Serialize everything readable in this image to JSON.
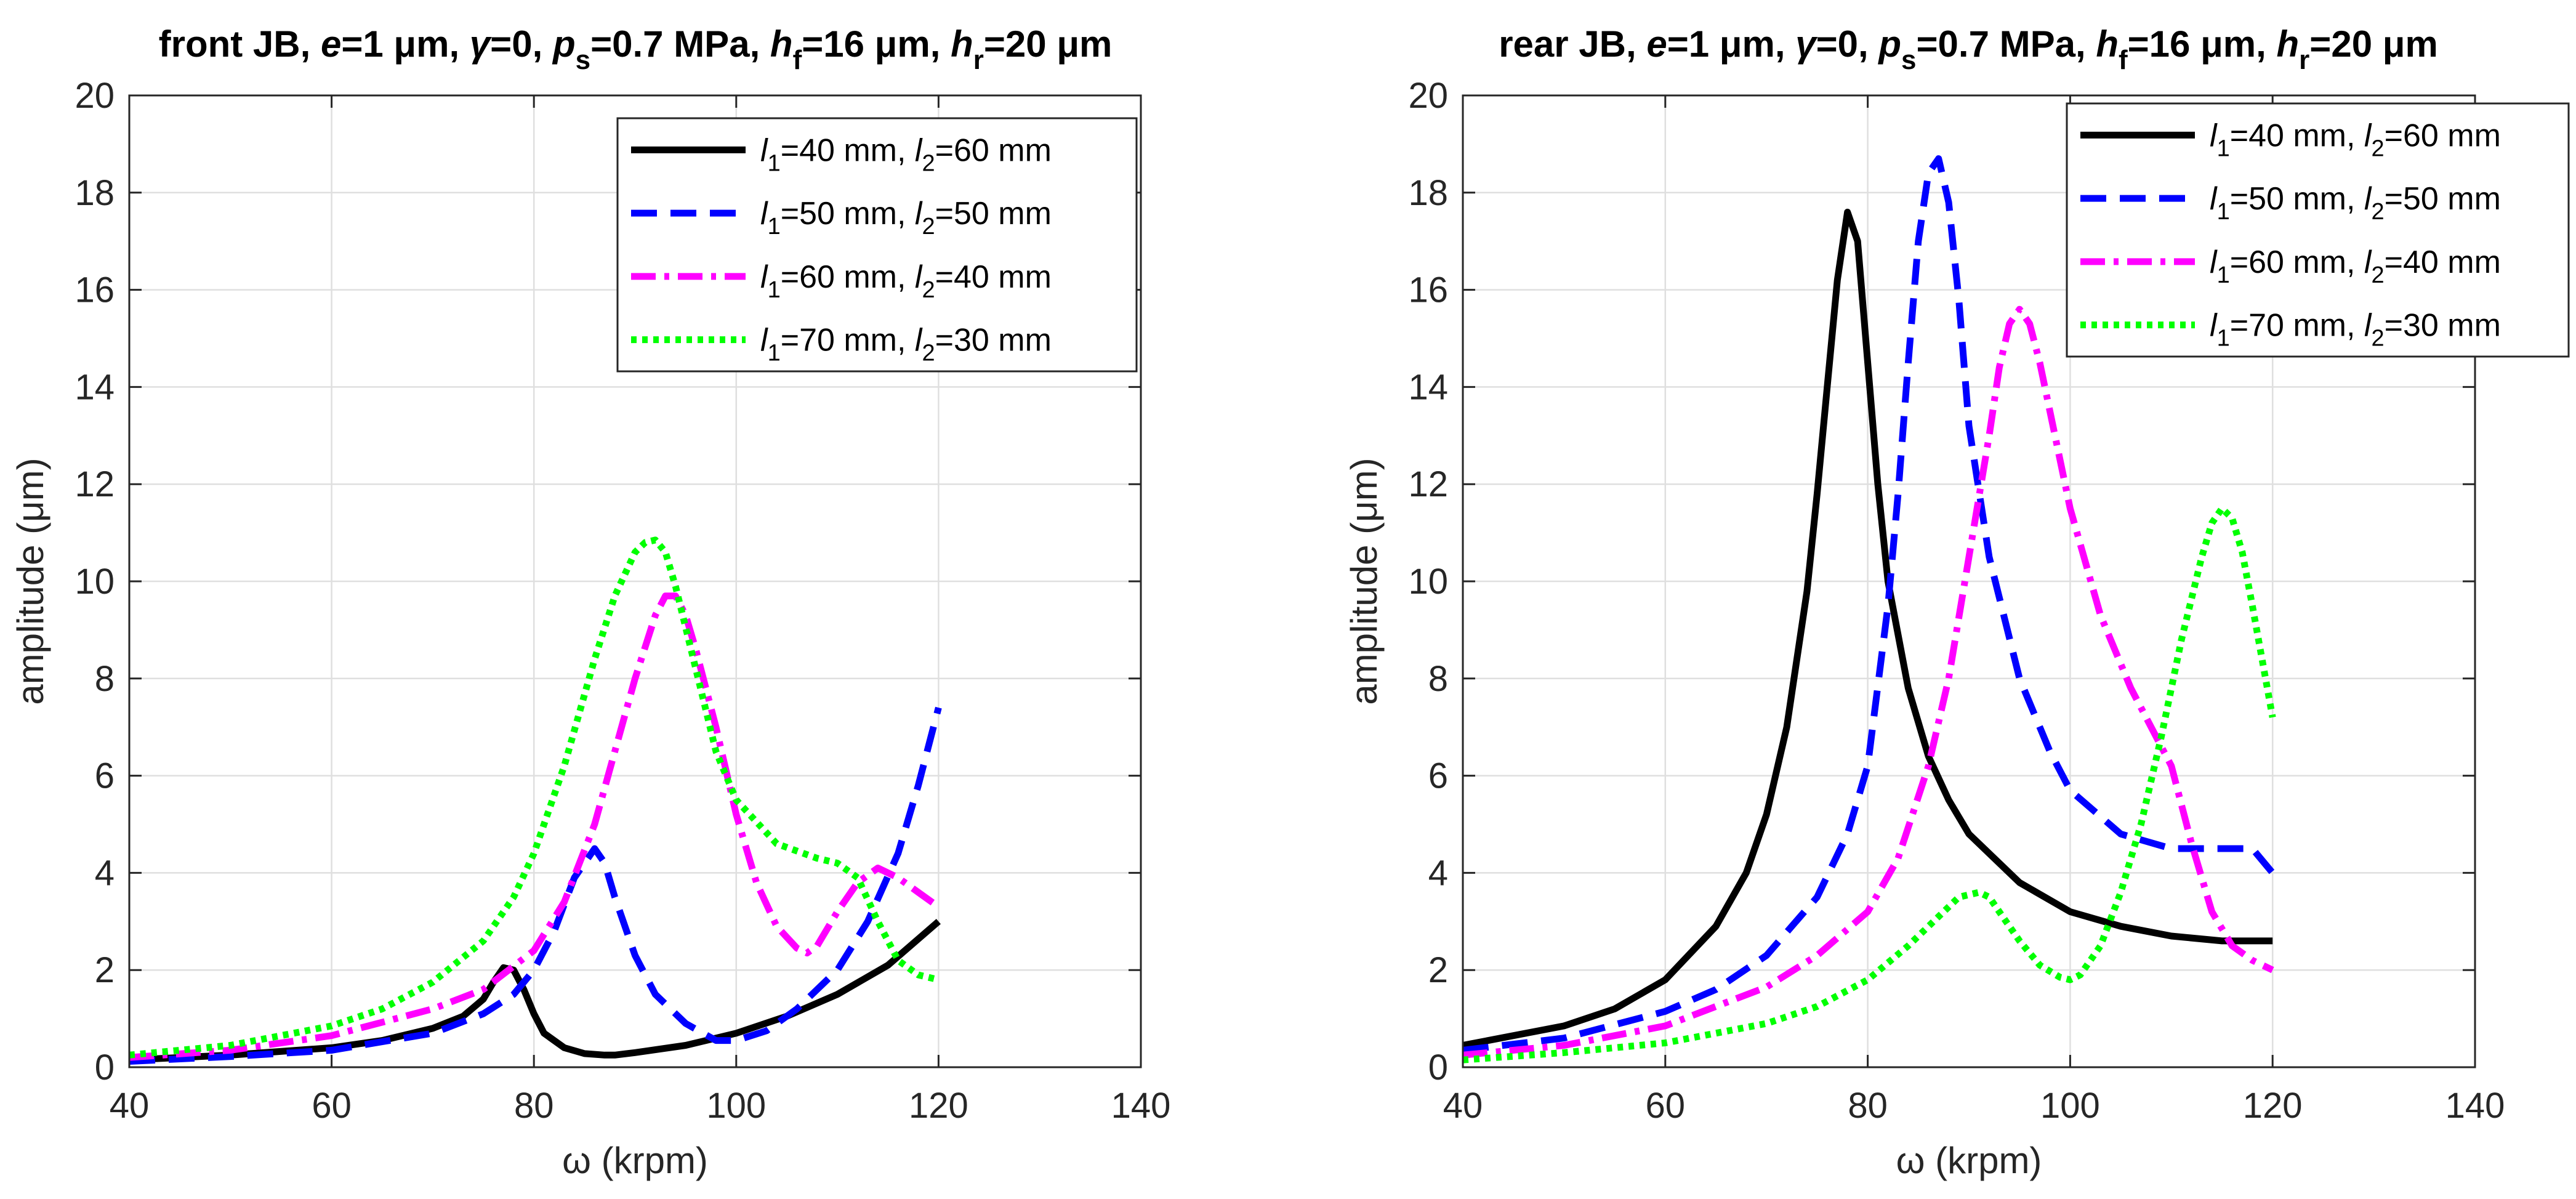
{
  "chart_data": [
    {
      "type": "line",
      "title": {
        "prefix": "front JB",
        "params": [
          {
            "sym": "e",
            "sub": "",
            "val": "=1 μm"
          },
          {
            "sym": "γ",
            "sub": "",
            "val": "=0"
          },
          {
            "sym": "p",
            "sub": "s",
            "val": "=0.7 MPa"
          },
          {
            "sym": "h",
            "sub": "f",
            "val": "=16 μm"
          },
          {
            "sym": "h",
            "sub": "r",
            "val": "=20 μm"
          }
        ]
      },
      "xlabel": "ω (krpm)",
      "ylabel": "amplitude (μm)",
      "xlim": [
        40,
        140
      ],
      "ylim": [
        0,
        20
      ],
      "xticks": [
        40,
        60,
        80,
        100,
        120,
        140
      ],
      "yticks": [
        0,
        2,
        4,
        6,
        8,
        10,
        12,
        14,
        16,
        18,
        20
      ],
      "grid": true,
      "legend_position": "top-right",
      "series": [
        {
          "name": "l1=40 mm, l2=60 mm",
          "l1": "40 mm",
          "l2": "60 mm",
          "color": "#000000",
          "dash": "solid",
          "x": [
            40,
            50,
            60,
            65,
            70,
            73,
            75,
            76,
            77,
            78,
            79,
            80,
            81,
            83,
            85,
            87,
            88,
            90,
            95,
            100,
            105,
            110,
            115,
            120
          ],
          "y": [
            0.15,
            0.25,
            0.4,
            0.55,
            0.8,
            1.05,
            1.4,
            1.75,
            2.05,
            2.0,
            1.6,
            1.1,
            0.7,
            0.4,
            0.28,
            0.25,
            0.25,
            0.3,
            0.45,
            0.7,
            1.05,
            1.5,
            2.1,
            3.0
          ]
        },
        {
          "name": "l1=50 mm, l2=50 mm",
          "l1": "50 mm",
          "l2": "50 mm",
          "color": "#0000FF",
          "dash": "dash",
          "x": [
            40,
            50,
            60,
            70,
            75,
            78,
            80,
            82,
            84,
            86,
            87,
            88,
            90,
            92,
            95,
            98,
            100,
            103,
            106,
            110,
            113,
            116,
            118,
            120
          ],
          "y": [
            0.12,
            0.22,
            0.35,
            0.7,
            1.1,
            1.5,
            2.0,
            2.8,
            3.9,
            4.5,
            4.2,
            3.5,
            2.3,
            1.5,
            0.9,
            0.55,
            0.55,
            0.75,
            1.2,
            2.0,
            3.0,
            4.4,
            5.8,
            7.4
          ]
        },
        {
          "name": "l1=60 mm, l2=40 mm",
          "l1": "60 mm",
          "l2": "40 mm",
          "color": "#FF00FF",
          "dash": "dashdot",
          "x": [
            40,
            50,
            60,
            70,
            75,
            80,
            83,
            86,
            88,
            90,
            92,
            93,
            94,
            95,
            96,
            98,
            100,
            102,
            104,
            106,
            107,
            108,
            110,
            112,
            114,
            116,
            118,
            120
          ],
          "y": [
            0.2,
            0.35,
            0.65,
            1.2,
            1.6,
            2.4,
            3.4,
            5.0,
            6.5,
            8.0,
            9.3,
            9.7,
            9.7,
            9.3,
            8.6,
            7.0,
            5.2,
            3.8,
            2.9,
            2.45,
            2.35,
            2.5,
            3.2,
            3.8,
            4.1,
            3.9,
            3.6,
            3.3
          ]
        },
        {
          "name": "l1=70 mm, l2=30 mm",
          "l1": "70 mm",
          "l2": "30 mm",
          "color": "#00FF00",
          "dash": "dot",
          "x": [
            40,
            50,
            60,
            65,
            70,
            75,
            78,
            80,
            83,
            86,
            88,
            90,
            91,
            92,
            93,
            94,
            96,
            98,
            100,
            104,
            108,
            110,
            112,
            114,
            116,
            118,
            120
          ],
          "y": [
            0.25,
            0.45,
            0.85,
            1.2,
            1.75,
            2.6,
            3.5,
            4.4,
            6.2,
            8.4,
            9.7,
            10.6,
            10.8,
            10.85,
            10.6,
            9.9,
            8.2,
            6.5,
            5.5,
            4.6,
            4.3,
            4.2,
            3.9,
            3.0,
            2.2,
            1.9,
            1.8
          ]
        }
      ]
    },
    {
      "type": "line",
      "title": {
        "prefix": "rear JB",
        "params": [
          {
            "sym": "e",
            "sub": "",
            "val": "=1 μm"
          },
          {
            "sym": "γ",
            "sub": "",
            "val": "=0"
          },
          {
            "sym": "p",
            "sub": "s",
            "val": "=0.7 MPa"
          },
          {
            "sym": "h",
            "sub": "f",
            "val": "=16 μm"
          },
          {
            "sym": "h",
            "sub": "r",
            "val": "=20 μm"
          }
        ]
      },
      "xlabel": "ω (krpm)",
      "ylabel": "amplitude (μm)",
      "xlim": [
        40,
        140
      ],
      "ylim": [
        0,
        20
      ],
      "xticks": [
        40,
        60,
        80,
        100,
        120,
        140
      ],
      "yticks": [
        0,
        2,
        4,
        6,
        8,
        10,
        12,
        14,
        16,
        18,
        20
      ],
      "grid": true,
      "legend_position": "top-right",
      "series": [
        {
          "name": "l1=40 mm, l2=60 mm",
          "l1": "40 mm",
          "l2": "60 mm",
          "color": "#000000",
          "dash": "solid",
          "x": [
            40,
            50,
            55,
            60,
            65,
            68,
            70,
            72,
            74,
            75,
            76,
            77,
            78,
            79,
            80,
            81,
            82,
            84,
            86,
            88,
            90,
            95,
            100,
            105,
            110,
            115,
            120
          ],
          "y": [
            0.45,
            0.85,
            1.2,
            1.8,
            2.9,
            4.0,
            5.2,
            7.0,
            9.8,
            11.8,
            14.0,
            16.2,
            17.6,
            17.0,
            14.5,
            12.0,
            10.0,
            7.8,
            6.4,
            5.5,
            4.8,
            3.8,
            3.2,
            2.9,
            2.7,
            2.6,
            2.6
          ]
        },
        {
          "name": "l1=50 mm, l2=50 mm",
          "l1": "50 mm",
          "l2": "50 mm",
          "color": "#0000FF",
          "dash": "dash",
          "x": [
            40,
            50,
            60,
            65,
            70,
            75,
            78,
            80,
            82,
            83,
            84,
            85,
            86,
            87,
            88,
            89,
            90,
            92,
            95,
            98,
            100,
            105,
            110,
            115,
            118,
            120
          ],
          "y": [
            0.35,
            0.6,
            1.15,
            1.6,
            2.3,
            3.5,
            4.8,
            6.2,
            9.5,
            11.8,
            14.5,
            17.0,
            18.4,
            18.7,
            17.8,
            15.8,
            13.2,
            10.5,
            8.0,
            6.5,
            5.7,
            4.8,
            4.5,
            4.5,
            4.5,
            4.0
          ]
        },
        {
          "name": "l1=60 mm, l2=40 mm",
          "l1": "60 mm",
          "l2": "40 mm",
          "color": "#FF00FF",
          "dash": "dashdot",
          "x": [
            40,
            50,
            60,
            70,
            75,
            80,
            83,
            86,
            88,
            90,
            92,
            93,
            94,
            95,
            96,
            97,
            98,
            100,
            103,
            106,
            108,
            110,
            112,
            114,
            116,
            118,
            120
          ],
          "y": [
            0.25,
            0.45,
            0.85,
            1.65,
            2.3,
            3.2,
            4.3,
            6.2,
            8.0,
            10.5,
            13.0,
            14.4,
            15.3,
            15.6,
            15.3,
            14.5,
            13.5,
            11.5,
            9.3,
            7.8,
            7.0,
            6.2,
            4.6,
            3.2,
            2.5,
            2.2,
            2.0
          ]
        },
        {
          "name": "l1=70 mm, l2=30 mm",
          "l1": "70 mm",
          "l2": "30 mm",
          "color": "#00FF00",
          "dash": "dot",
          "x": [
            40,
            50,
            60,
            70,
            75,
            80,
            84,
            87,
            89,
            91,
            92,
            93,
            95,
            97,
            99,
            100,
            101,
            103,
            105,
            107,
            109,
            111,
            113,
            114,
            115,
            116,
            117,
            118,
            120
          ],
          "y": [
            0.15,
            0.3,
            0.5,
            0.9,
            1.25,
            1.8,
            2.5,
            3.1,
            3.5,
            3.6,
            3.5,
            3.2,
            2.6,
            2.1,
            1.85,
            1.8,
            1.9,
            2.5,
            3.6,
            5.0,
            6.8,
            8.8,
            10.5,
            11.2,
            11.5,
            11.3,
            10.6,
            9.5,
            7.2
          ]
        }
      ]
    }
  ]
}
